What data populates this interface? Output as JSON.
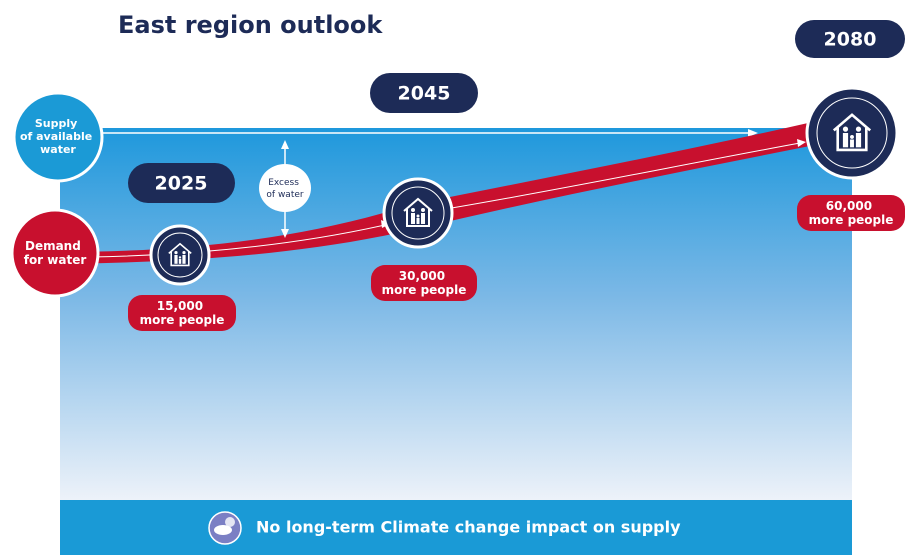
{
  "title": "East region outlook",
  "supply": {
    "lines": [
      "Supply",
      "of available",
      "water"
    ]
  },
  "demand": {
    "lines": [
      "Demand",
      "for water"
    ]
  },
  "excess": {
    "lines": [
      "Excess",
      "of water"
    ]
  },
  "milestones": [
    {
      "year": "2025",
      "people": [
        "15,000",
        "more people"
      ]
    },
    {
      "year": "2045",
      "people": [
        "30,000",
        "more people"
      ]
    },
    {
      "year": "2080",
      "people": [
        "60,000",
        "more people"
      ]
    }
  ],
  "footer": "No long-term Climate change impact on supply"
}
